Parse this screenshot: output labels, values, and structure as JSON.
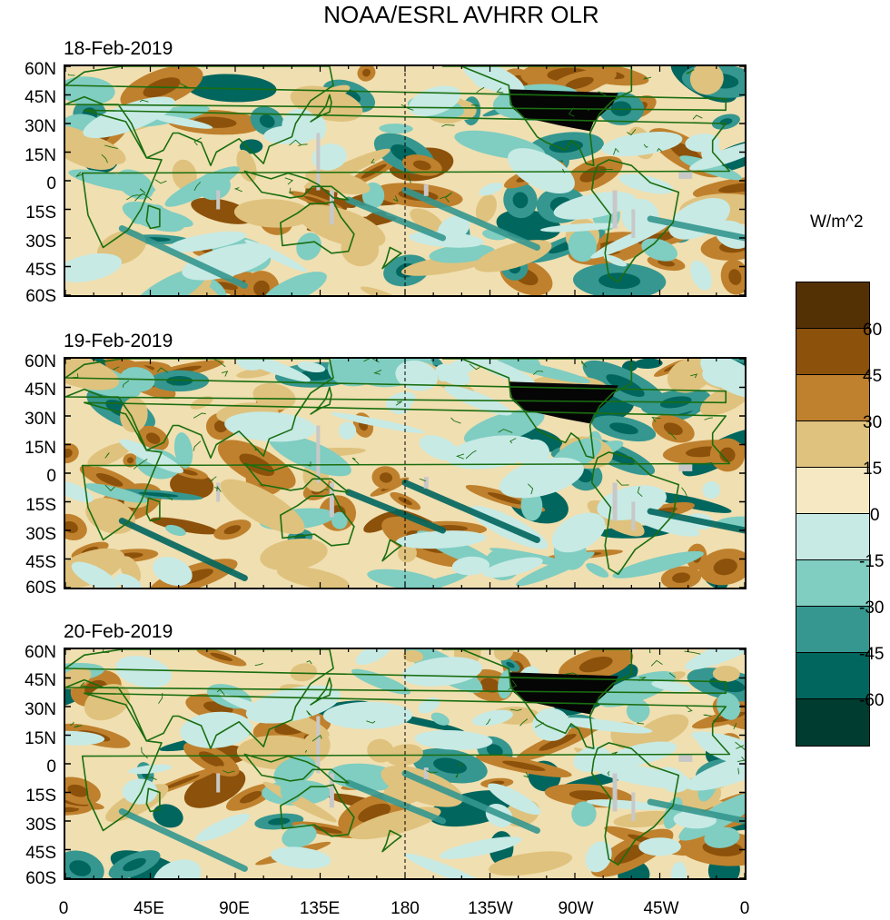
{
  "title": "NOAA/ESRL AVHRR OLR",
  "panels": [
    {
      "date": "18-Feb-2019"
    },
    {
      "date": "19-Feb-2019"
    },
    {
      "date": "20-Feb-2019"
    }
  ],
  "lat_labels": [
    "60N",
    "45N",
    "30N",
    "15N",
    "0",
    "15S",
    "30S",
    "45S",
    "60S"
  ],
  "lon_labels": [
    "0",
    "45E",
    "90E",
    "135E",
    "180",
    "135W",
    "90W",
    "45W",
    "0"
  ],
  "colorbar": {
    "unit": "W/m^2",
    "labels": [
      "60",
      "45",
      "30",
      "15",
      "0",
      "-15",
      "-30",
      "-45",
      "-60"
    ],
    "colors": [
      "#543005",
      "#8c510a",
      "#bf812d",
      "#dfc27d",
      "#f6e8c3",
      "#c7eae5",
      "#80cdc1",
      "#35978f",
      "#01665e",
      "#003c30"
    ]
  },
  "colors": {
    "land_outline": "#1a6e10",
    "missing": "#c8c8c8",
    "dateline": "#000000"
  }
}
